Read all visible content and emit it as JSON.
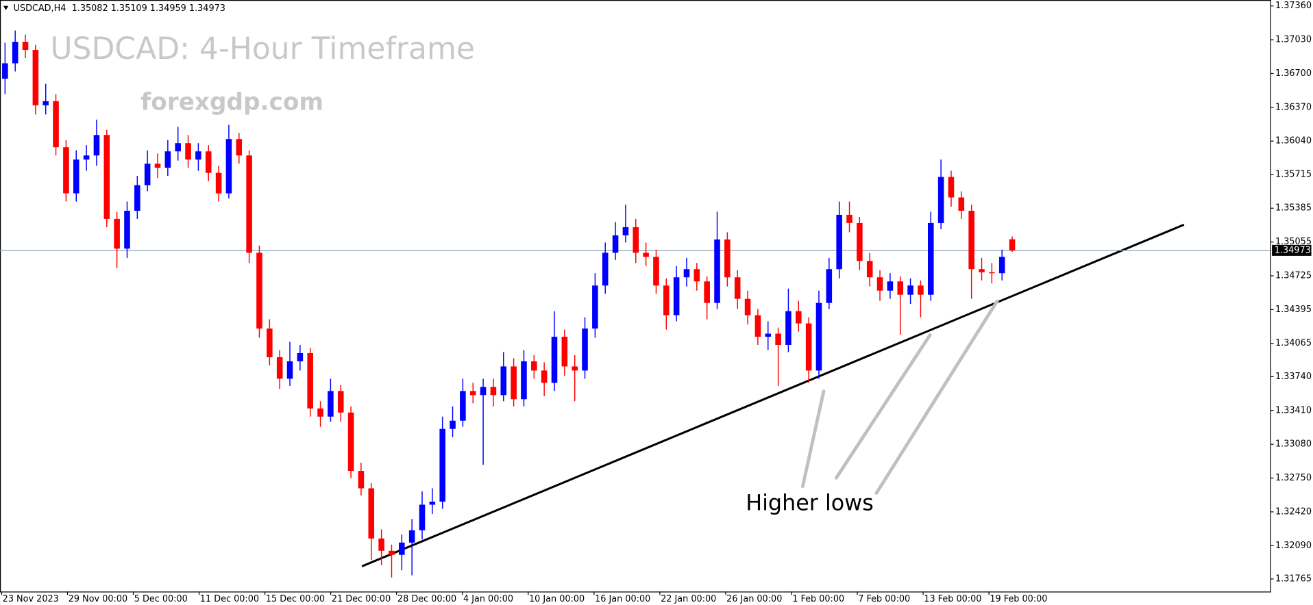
{
  "chart_data": {
    "type": "candlestick",
    "info": "USDCAD,H4  1.35082 1.35109 1.34959 1.34973",
    "title": "USDCAD: 4-Hour Timeframe",
    "watermark": "forexgdp.com",
    "annotation": "Higher lows",
    "up_color": "#0000ff",
    "down_color": "#ff0000",
    "grid": false,
    "last_price": 1.34973,
    "ylim": [
      1.31642,
      1.37418
    ],
    "yticks": [
      {
        "value": 1.3736,
        "label": "1.37360"
      },
      {
        "value": 1.3703,
        "label": "1.37030"
      },
      {
        "value": 1.367,
        "label": "1.36700"
      },
      {
        "value": 1.3637,
        "label": "1.36370"
      },
      {
        "value": 1.3604,
        "label": "1.36040"
      },
      1.35715,
      1.35385,
      1.35055,
      1.34725,
      1.34395,
      1.34065,
      {
        "value": 1.3374,
        "label": "1.33740"
      },
      {
        "value": 1.3341,
        "label": "1.33410"
      },
      {
        "value": 1.3308,
        "label": "1.33080"
      },
      {
        "value": 1.3275,
        "label": "1.32750"
      },
      {
        "value": 1.3242,
        "label": "1.32420"
      },
      {
        "value": 1.3209,
        "label": "1.32090"
      },
      1.31765
    ],
    "x_labels": [
      "23 Nov 2023",
      "29 Nov 00:00",
      "5 Dec 00:00",
      "11 Dec 00:00",
      "15 Dec 00:00",
      "21 Dec 00:00",
      "28 Dec 00:00",
      "4 Jan 00:00",
      "10 Jan 00:00",
      "16 Jan 00:00",
      "22 Jan 00:00",
      "26 Jan 00:00",
      "1 Feb 00:00",
      "7 Feb 00:00",
      "13 Feb 00:00",
      "19 Feb 00:00"
    ],
    "candles": [
      [
        1.3665,
        1.37,
        1.365,
        1.368
      ],
      [
        1.368,
        1.3712,
        1.3672,
        1.3701
      ],
      [
        1.3701,
        1.3708,
        1.3685,
        1.3693
      ],
      [
        1.3693,
        1.3698,
        1.363,
        1.3639
      ],
      [
        1.3639,
        1.366,
        1.363,
        1.3643
      ],
      [
        1.3643,
        1.365,
        1.359,
        1.3598
      ],
      [
        1.3598,
        1.3605,
        1.3545,
        1.3553
      ],
      [
        1.3553,
        1.3595,
        1.3545,
        1.3586
      ],
      [
        1.3586,
        1.36,
        1.3575,
        1.359
      ],
      [
        1.359,
        1.3625,
        1.358,
        1.361
      ],
      [
        1.361,
        1.3615,
        1.352,
        1.3528
      ],
      [
        1.3528,
        1.3535,
        1.348,
        1.3499
      ],
      [
        1.3499,
        1.3545,
        1.349,
        1.3536
      ],
      [
        1.3536,
        1.357,
        1.3528,
        1.3561
      ],
      [
        1.3561,
        1.3595,
        1.3555,
        1.3582
      ],
      [
        1.3582,
        1.3592,
        1.3568,
        1.3578
      ],
      [
        1.3578,
        1.3605,
        1.357,
        1.3594
      ],
      [
        1.3594,
        1.3618,
        1.3585,
        1.3602
      ],
      [
        1.3602,
        1.361,
        1.3578,
        1.3586
      ],
      [
        1.3586,
        1.3602,
        1.3575,
        1.3594
      ],
      [
        1.3594,
        1.36,
        1.3565,
        1.3573
      ],
      [
        1.3573,
        1.358,
        1.3545,
        1.3553
      ],
      [
        1.3553,
        1.362,
        1.3548,
        1.3606
      ],
      [
        1.3606,
        1.3612,
        1.3582,
        1.359
      ],
      [
        1.359,
        1.3595,
        1.3485,
        1.3495
      ],
      [
        1.3495,
        1.3502,
        1.3412,
        1.3421
      ],
      [
        1.3421,
        1.343,
        1.3385,
        1.3393
      ],
      [
        1.3393,
        1.34,
        1.3362,
        1.3372
      ],
      [
        1.3372,
        1.3408,
        1.3365,
        1.3389
      ],
      [
        1.3389,
        1.3405,
        1.338,
        1.3397
      ],
      [
        1.3397,
        1.3402,
        1.3335,
        1.3343
      ],
      [
        1.3343,
        1.335,
        1.3325,
        1.3335
      ],
      [
        1.3335,
        1.3372,
        1.333,
        1.336
      ],
      [
        1.336,
        1.3366,
        1.333,
        1.3339
      ],
      [
        1.3339,
        1.3345,
        1.3275,
        1.3282
      ],
      [
        1.3282,
        1.329,
        1.3258,
        1.3265
      ],
      [
        1.3265,
        1.327,
        1.3195,
        1.3216
      ],
      [
        1.3216,
        1.3225,
        1.319,
        1.3204
      ],
      [
        1.3204,
        1.321,
        1.3178,
        1.32
      ],
      [
        1.32,
        1.322,
        1.3185,
        1.3212
      ],
      [
        1.3212,
        1.3235,
        1.318,
        1.3224
      ],
      [
        1.3224,
        1.3262,
        1.3215,
        1.3249
      ],
      [
        1.3249,
        1.3265,
        1.324,
        1.3252
      ],
      [
        1.3252,
        1.3335,
        1.3245,
        1.3323
      ],
      [
        1.3323,
        1.3345,
        1.3315,
        1.3331
      ],
      [
        1.3331,
        1.3372,
        1.3325,
        1.336
      ],
      [
        1.336,
        1.3368,
        1.3348,
        1.3356
      ],
      [
        1.3356,
        1.3372,
        1.3288,
        1.3364
      ],
      [
        1.3364,
        1.3372,
        1.3345,
        1.3356
      ],
      [
        1.3356,
        1.3398,
        1.335,
        1.3384
      ],
      [
        1.3384,
        1.3392,
        1.3345,
        1.3352
      ],
      [
        1.3352,
        1.34,
        1.3345,
        1.3389
      ],
      [
        1.3389,
        1.3395,
        1.3372,
        1.338
      ],
      [
        1.338,
        1.3388,
        1.3355,
        1.3368
      ],
      [
        1.3368,
        1.3438,
        1.336,
        1.3413
      ],
      [
        1.3413,
        1.342,
        1.3375,
        1.3384
      ],
      [
        1.3384,
        1.3395,
        1.335,
        1.338
      ],
      [
        1.338,
        1.3432,
        1.3372,
        1.3421
      ],
      [
        1.3421,
        1.3475,
        1.3412,
        1.3463
      ],
      [
        1.3463,
        1.3505,
        1.3455,
        1.3495
      ],
      [
        1.3495,
        1.3525,
        1.3488,
        1.3512
      ],
      [
        1.3512,
        1.3542,
        1.3505,
        1.352
      ],
      [
        1.352,
        1.3528,
        1.3485,
        1.3495
      ],
      [
        1.3495,
        1.3505,
        1.3482,
        1.3491
      ],
      [
        1.3491,
        1.3498,
        1.3455,
        1.3463
      ],
      [
        1.3463,
        1.347,
        1.342,
        1.3434
      ],
      [
        1.3434,
        1.3482,
        1.3428,
        1.3471
      ],
      [
        1.3471,
        1.349,
        1.3462,
        1.3479
      ],
      [
        1.3479,
        1.3485,
        1.3458,
        1.3467
      ],
      [
        1.3467,
        1.3472,
        1.343,
        1.3446
      ],
      [
        1.3446,
        1.3535,
        1.344,
        1.3508
      ],
      [
        1.3508,
        1.3515,
        1.3462,
        1.3471
      ],
      [
        1.3471,
        1.3478,
        1.344,
        1.345
      ],
      [
        1.345,
        1.3458,
        1.3425,
        1.3434
      ],
      [
        1.3434,
        1.344,
        1.3405,
        1.3413
      ],
      [
        1.3413,
        1.3428,
        1.34,
        1.3416
      ],
      [
        1.3416,
        1.3422,
        1.3365,
        1.3405
      ],
      [
        1.3405,
        1.346,
        1.3398,
        1.3438
      ],
      [
        1.3438,
        1.3448,
        1.3418,
        1.3426
      ],
      [
        1.3426,
        1.3432,
        1.3368,
        1.338
      ],
      [
        1.338,
        1.3458,
        1.3372,
        1.3446
      ],
      [
        1.3446,
        1.349,
        1.344,
        1.3479
      ],
      [
        1.3479,
        1.3545,
        1.347,
        1.3532
      ],
      [
        1.3532,
        1.3545,
        1.3515,
        1.3524
      ],
      [
        1.3524,
        1.353,
        1.3478,
        1.3487
      ],
      [
        1.3487,
        1.3495,
        1.3462,
        1.3471
      ],
      [
        1.3471,
        1.3478,
        1.3448,
        1.3458
      ],
      [
        1.3458,
        1.3475,
        1.345,
        1.3467
      ],
      [
        1.3467,
        1.3472,
        1.3415,
        1.3454
      ],
      [
        1.3454,
        1.347,
        1.3445,
        1.3463
      ],
      [
        1.3463,
        1.3468,
        1.3432,
        1.3454
      ],
      [
        1.3454,
        1.3535,
        1.3448,
        1.3524
      ],
      [
        1.3524,
        1.3586,
        1.3518,
        1.3569
      ],
      [
        1.3569,
        1.3575,
        1.354,
        1.3549
      ],
      [
        1.3549,
        1.3555,
        1.3528,
        1.3536
      ],
      [
        1.3536,
        1.3542,
        1.345,
        1.3479
      ],
      [
        1.3479,
        1.349,
        1.3468,
        1.3476
      ],
      [
        1.3476,
        1.3485,
        1.3465,
        1.3475
      ],
      [
        1.3475,
        1.3498,
        1.3468,
        1.3491
      ],
      [
        1.35082,
        1.35109,
        1.34959,
        1.34973
      ]
    ]
  }
}
